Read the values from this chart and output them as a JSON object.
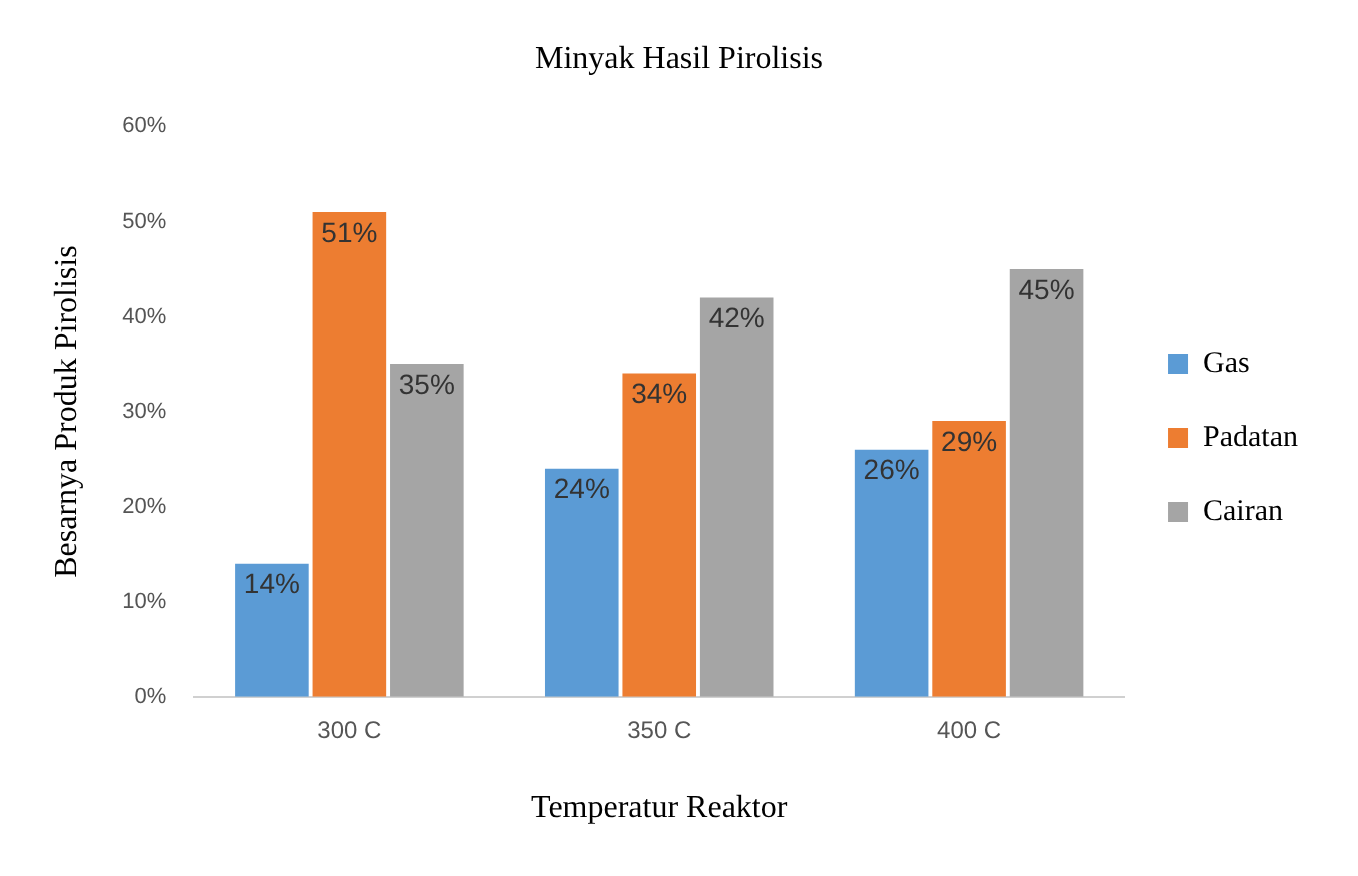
{
  "chart_data": {
    "type": "bar",
    "title": "Minyak Hasil Pirolisis",
    "xlabel": "Temperatur Reaktor",
    "ylabel": "Besarnya Produk Pirolisis",
    "categories": [
      "300 C",
      "350 C",
      "400 C"
    ],
    "series": [
      {
        "name": "Gas",
        "color": "#5b9bd5",
        "values": [
          14,
          24,
          26
        ],
        "value_labels": [
          "14%",
          "24%",
          "26%"
        ]
      },
      {
        "name": "Padatan",
        "color": "#ed7d31",
        "values": [
          51,
          34,
          29
        ],
        "value_labels": [
          "51%",
          "34%",
          "29%"
        ]
      },
      {
        "name": "Cairan",
        "color": "#a5a5a5",
        "values": [
          35,
          42,
          45
        ],
        "value_labels": [
          "35%",
          "42%",
          "45%"
        ]
      }
    ],
    "ylim": [
      0,
      60
    ],
    "yticks": [
      {
        "value": 0,
        "label": "0%"
      },
      {
        "value": 10,
        "label": "10%"
      },
      {
        "value": 20,
        "label": "20%"
      },
      {
        "value": 30,
        "label": "30%"
      },
      {
        "value": 40,
        "label": "40%"
      },
      {
        "value": 50,
        "label": "50%"
      },
      {
        "value": 60,
        "label": "60%"
      }
    ],
    "grid": false,
    "legend": "right"
  }
}
